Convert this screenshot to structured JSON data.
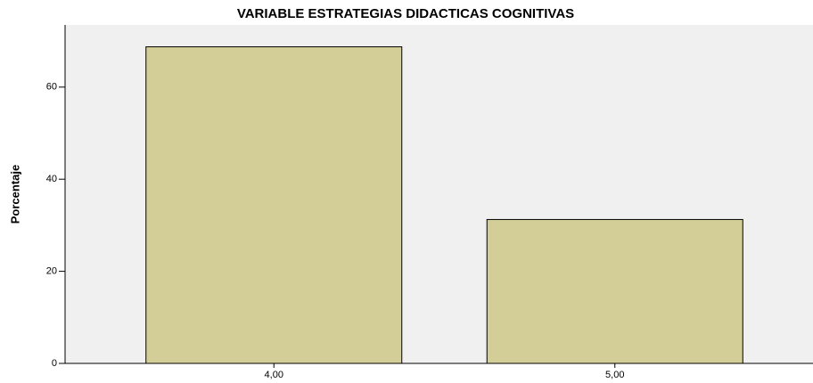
{
  "chart_data": {
    "type": "bar",
    "title": "VARIABLE ESTRATEGIAS DIDACTICAS COGNITIVAS",
    "y_label": "Porcentaje",
    "categories": [
      "4,00",
      "5,00"
    ],
    "values": [
      68.75,
      31.25
    ],
    "color": "#d3ce97",
    "ylim": [
      0,
      73.5
    ],
    "yticks": [
      0,
      20,
      40,
      60
    ]
  }
}
